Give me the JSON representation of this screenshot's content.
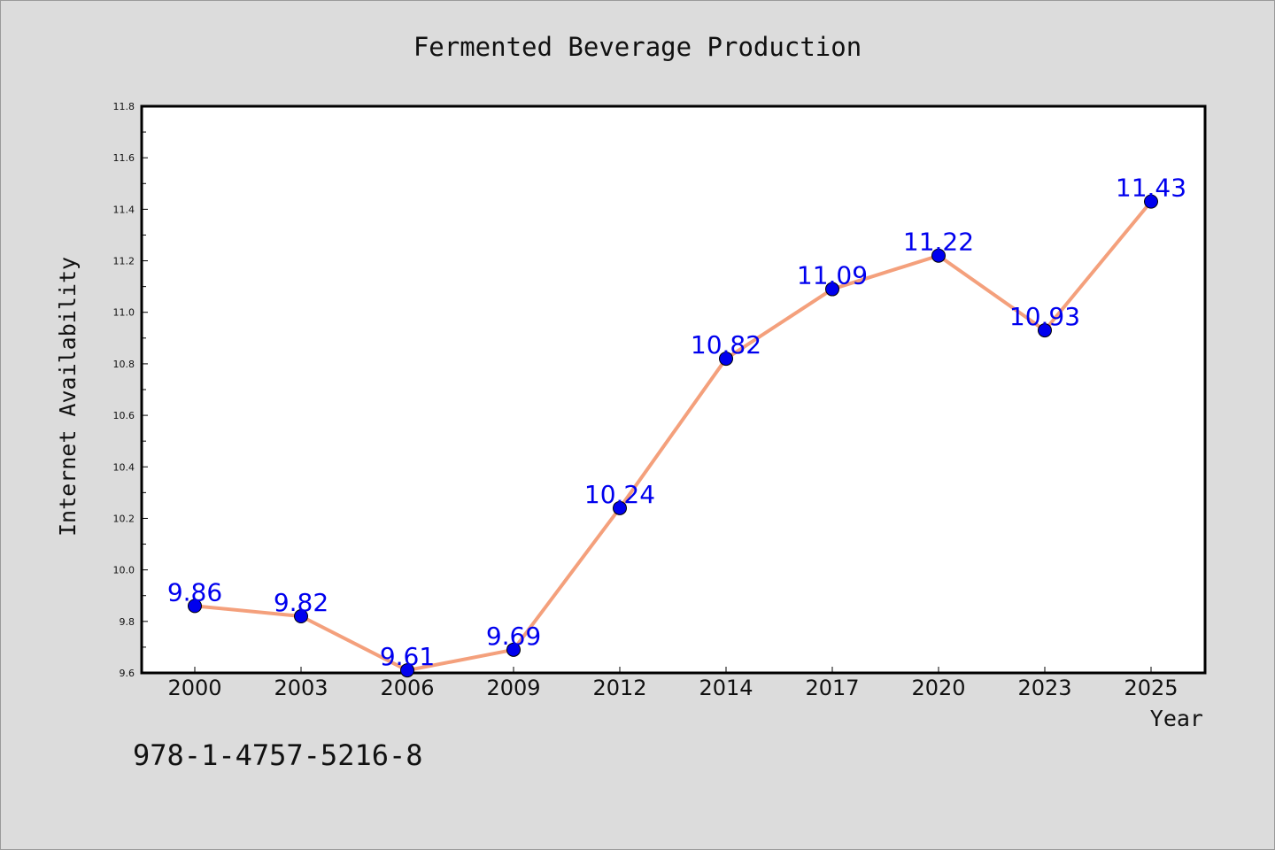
{
  "chart_data": {
    "type": "line",
    "title": "Fermented Beverage Production",
    "xlabel": "Year",
    "ylabel": "Internet Availability",
    "categories": [
      "2000",
      "2003",
      "2006",
      "2009",
      "2012",
      "2014",
      "2017",
      "2020",
      "2023",
      "2025"
    ],
    "series": [
      {
        "values": [
          9.86,
          9.82,
          9.61,
          9.69,
          10.24,
          10.82,
          11.09,
          11.22,
          10.93,
          11.43
        ],
        "line_color": "#f4a07c",
        "marker_color": "#0000ee"
      }
    ],
    "data_labels": [
      "9.86",
      "9.82",
      "9.61",
      "9.69",
      "10.24",
      "10.82",
      "11.09",
      "11.22",
      "10.93",
      "11.43"
    ],
    "data_label_color": "#0000ee",
    "ylim": [
      9.6,
      11.8
    ],
    "yticks": [
      "9.6",
      "9.8",
      "10.0",
      "10.2",
      "10.4",
      "10.6",
      "10.8",
      "11.0",
      "11.2",
      "11.4",
      "11.6",
      "11.8"
    ],
    "grid": false,
    "legend": "none"
  },
  "footer": {
    "isbn": "978-1-4757-5216-8"
  }
}
